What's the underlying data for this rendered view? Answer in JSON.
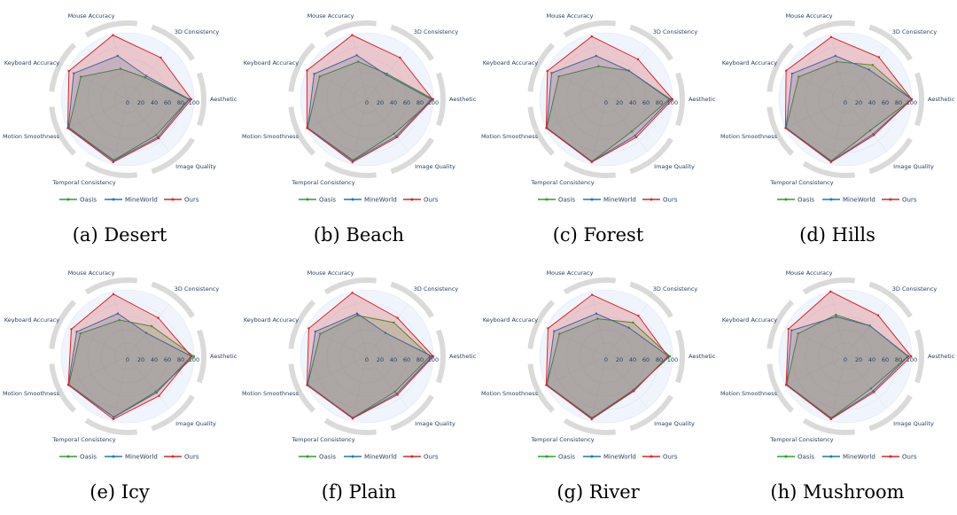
{
  "chart_data": {
    "type": "radar",
    "axes": [
      "Aesthetic",
      "3D Consistency",
      "Mouse Accuracy",
      "Keyboard Accuracy",
      "Motion Smoothness",
      "Temporal Consistency",
      "Image Quality"
    ],
    "radial_ticks": [
      "0",
      "20",
      "40",
      "60",
      "80",
      "100"
    ],
    "rlim": [
      0,
      100
    ],
    "legend_placement": "bottom",
    "series_colors": {
      "Oasis": "#2ca02c",
      "MineWorld": "#1f77b4",
      "Ours": "#d62728"
    },
    "panels": [
      {
        "caption": "(a) Desert",
        "series": [
          {
            "name": "Oasis",
            "values": [
              92,
              42,
              47,
              78,
              98,
              94,
              69
            ]
          },
          {
            "name": "MineWorld",
            "values": [
              93,
              45,
              67,
              90,
              99,
              95,
              73
            ]
          },
          {
            "name": "Ours",
            "values": [
              96,
              80,
              99,
              98,
              100,
              97,
              75
            ]
          }
        ]
      },
      {
        "caption": "(b) Beach",
        "series": [
          {
            "name": "Oasis",
            "values": [
              100,
              49,
              58,
              79,
              99,
              94,
              66
            ]
          },
          {
            "name": "MineWorld",
            "values": [
              97,
              47,
              68,
              88,
              99,
              95,
              71
            ]
          },
          {
            "name": "Ours",
            "values": [
              99,
              80,
              99,
              100,
              100,
              97,
              73
            ]
          }
        ]
      },
      {
        "caption": "(c) Forest",
        "series": [
          {
            "name": "Oasis",
            "values": [
              95,
              55,
              51,
              79,
              99,
              96,
              62
            ]
          },
          {
            "name": "MineWorld",
            "values": [
              97,
              55,
              67,
              91,
              99,
              96,
              70
            ]
          },
          {
            "name": "Ours",
            "values": [
              100,
              77,
              97,
              98,
              100,
              97,
              73
            ]
          }
        ]
      },
      {
        "caption": "(d) Hills",
        "series": [
          {
            "name": "Oasis",
            "values": [
              100,
              66,
              58,
              78,
              99,
              95,
              60
            ]
          },
          {
            "name": "MineWorld",
            "values": [
              100,
              57,
              67,
              89,
              99,
              96,
              67
            ]
          },
          {
            "name": "Ours",
            "values": [
              100,
              81,
              96,
              99,
              100,
              97,
              69
            ]
          }
        ]
      },
      {
        "caption": "(e) Icy",
        "series": [
          {
            "name": "Oasis",
            "values": [
              100,
              58,
              56,
              79,
              98,
              94,
              68
            ]
          },
          {
            "name": "MineWorld",
            "values": [
              96,
              45,
              66,
              85,
              99,
              94,
              70
            ]
          },
          {
            "name": "Ours",
            "values": [
              96,
              74,
              96,
              94,
              99,
              97,
              76
            ]
          }
        ]
      },
      {
        "caption": "(f) Plain",
        "series": [
          {
            "name": "Oasis",
            "values": [
              95,
              65,
              63,
              78,
              99,
              95,
              68
            ]
          },
          {
            "name": "MineWorld",
            "values": [
              98,
              45,
              66,
              86,
              99,
              95,
              72
            ]
          },
          {
            "name": "Ours",
            "values": [
              100,
              74,
              98,
              97,
              100,
              96,
              74
            ]
          }
        ]
      },
      {
        "caption": "(g) River",
        "series": [
          {
            "name": "Oasis",
            "values": [
              96,
              65,
              58,
              78,
              99,
              95,
              65
            ]
          },
          {
            "name": "MineWorld",
            "values": [
              94,
              55,
              66,
              87,
              99,
              96,
              66
            ]
          },
          {
            "name": "Ours",
            "values": [
              93,
              78,
              95,
              97,
              100,
              97,
              67
            ]
          }
        ]
      },
      {
        "caption": "(h) Mushroom",
        "series": [
          {
            "name": "Oasis",
            "values": [
              94,
              59,
              64,
              79,
              98,
              95,
              62
            ]
          },
          {
            "name": "MineWorld",
            "values": [
              95,
              59,
              61,
              90,
              98,
              96,
              67
            ]
          },
          {
            "name": "Ours",
            "values": [
              99,
              79,
              100,
              95,
              99,
              97,
              69
            ]
          }
        ]
      }
    ]
  }
}
